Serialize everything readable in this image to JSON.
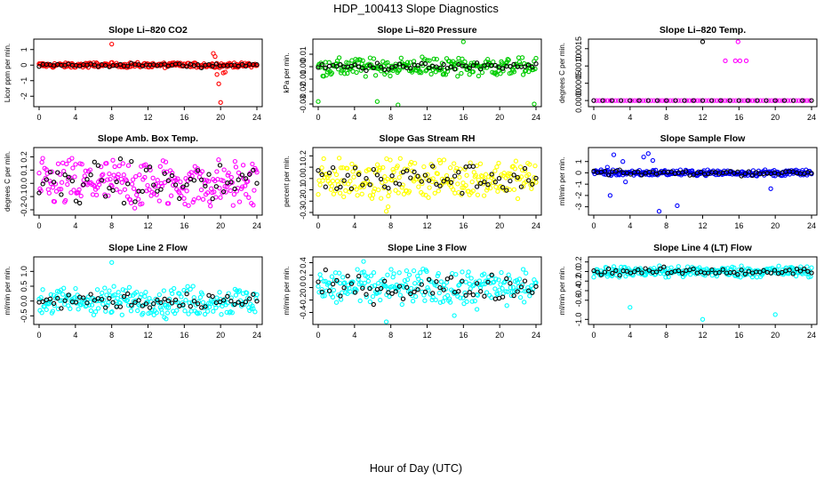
{
  "figure": {
    "title": "HDP_100413  Slope Diagnostics",
    "xlabel": "Hour of Day (UTC)"
  },
  "chart_data": [
    {
      "type": "scatter",
      "title": "Slope Li–820 CO2",
      "ylabel": "Licor ppm per min.",
      "color": "#ff0000",
      "xlim": [
        0,
        24
      ],
      "ylim": [
        -2.5,
        1.5
      ],
      "xticks": [
        0,
        4,
        8,
        12,
        16,
        20,
        24
      ],
      "yticks": [
        -2,
        -1,
        0,
        1
      ],
      "ytick_labels": [
        "-2",
        "-1",
        "0",
        "1"
      ],
      "base": 0.0,
      "noise": 0.17,
      "black_noise": 0.12,
      "outliers": [
        [
          8.0,
          1.35
        ],
        [
          19.2,
          0.75
        ],
        [
          19.4,
          0.55
        ],
        [
          19.6,
          -0.6
        ],
        [
          19.8,
          -1.2
        ],
        [
          20.0,
          -2.4
        ],
        [
          20.3,
          -0.5
        ],
        [
          20.5,
          -0.45
        ]
      ]
    },
    {
      "type": "scatter",
      "title": "Slope Li–820 Pressure",
      "ylabel": "kPa per min.",
      "color": "#00cc00",
      "xlim": [
        0,
        24
      ],
      "ylim": [
        -0.03,
        0.02
      ],
      "xticks": [
        0,
        4,
        8,
        12,
        16,
        20,
        24
      ],
      "yticks": [
        -0.03,
        -0.02,
        -0.01,
        0.0,
        0.01
      ],
      "ytick_labels": [
        "-0.03",
        "-0.02",
        "-0.01",
        "0.00",
        "0.01"
      ],
      "base": 0.0,
      "noise": 0.008,
      "black_noise": 0.003,
      "outliers": [
        [
          0.0,
          -0.028
        ],
        [
          6.5,
          -0.028
        ],
        [
          8.8,
          -0.032
        ],
        [
          16.0,
          0.02
        ],
        [
          23.8,
          -0.03
        ]
      ]
    },
    {
      "type": "scatter",
      "title": "Slope Li–820 Temp.",
      "ylabel": "degrees C per min.",
      "color": "#ff00ff",
      "xlim": [
        0,
        24
      ],
      "ylim": [
        -0.0001,
        0.0017
      ],
      "xticks": [
        0,
        4,
        8,
        12,
        16,
        20,
        24
      ],
      "yticks": [
        0.0,
        0.0005,
        0.001,
        0.0015
      ],
      "ytick_labels": [
        "0.0000",
        "0.0005",
        "0.0010",
        "0.0015"
      ],
      "base": 0.0,
      "noise": 0.0,
      "black_noise": 0.0,
      "outliers": [
        [
          12.0,
          0.0017
        ],
        [
          14.5,
          0.00115
        ],
        [
          15.6,
          0.00115
        ],
        [
          15.9,
          0.0017
        ],
        [
          16.1,
          0.00115
        ],
        [
          16.8,
          0.00115
        ]
      ]
    },
    {
      "type": "scatter",
      "title": "Slope Amb. Box Temp.",
      "ylabel": "degrees C per min.",
      "color": "#ff00ff",
      "xlim": [
        0,
        24
      ],
      "ylim": [
        -0.22,
        0.25
      ],
      "xticks": [
        0,
        4,
        8,
        12,
        16,
        20,
        24
      ],
      "yticks": [
        -0.2,
        -0.1,
        0.0,
        0.1,
        0.2
      ],
      "ytick_labels": [
        "-0.2",
        "-0.1",
        "0.0",
        "0.1",
        "0.2"
      ],
      "base": 0.0,
      "noise": 0.19,
      "black_noise": 0.15,
      "outliers": []
    },
    {
      "type": "scatter",
      "title": "Slope Gas Stream RH",
      "ylabel": "percent per min.",
      "color": "#ffff00",
      "xlim": [
        0,
        24
      ],
      "ylim": [
        -0.3,
        0.25
      ],
      "xticks": [
        0,
        4,
        8,
        12,
        16,
        20,
        24
      ],
      "yticks": [
        -0.3,
        -0.2,
        -0.1,
        0.0,
        0.1,
        0.2
      ],
      "ytick_labels": [
        "-0.3",
        "-0.2",
        "-0.1",
        "0.0",
        "0.1",
        "0.2"
      ],
      "base": 0.0,
      "noise": 0.18,
      "black_noise": 0.13,
      "outliers": [
        [
          7.5,
          -0.29
        ],
        [
          7.7,
          -0.25
        ]
      ]
    },
    {
      "type": "scatter",
      "title": "Slope Sample Flow",
      "ylabel": "ml/min per min.",
      "color": "#0000ff",
      "xlim": [
        0,
        24
      ],
      "ylim": [
        -3.5,
        2.0
      ],
      "xticks": [
        0,
        4,
        8,
        12,
        16,
        20,
        24
      ],
      "yticks": [
        -3,
        -2,
        -1,
        0,
        1
      ],
      "ytick_labels": [
        "-3",
        "-2",
        "-1",
        "0",
        "1"
      ],
      "base": 0.0,
      "noise": 0.28,
      "black_noise": 0.2,
      "outliers": [
        [
          1.5,
          0.5
        ],
        [
          1.8,
          -2.0
        ],
        [
          2.2,
          1.6
        ],
        [
          3.2,
          1.0
        ],
        [
          3.5,
          -0.8
        ],
        [
          5.5,
          1.4
        ],
        [
          6.0,
          1.7
        ],
        [
          6.5,
          1.1
        ],
        [
          7.2,
          -3.4
        ],
        [
          9.2,
          -2.9
        ],
        [
          19.5,
          -1.4
        ]
      ]
    },
    {
      "type": "scatter",
      "title": "Slope Line 2 Flow",
      "ylabel": "ml/min per min.",
      "color": "#00ffff",
      "xlim": [
        0,
        24
      ],
      "ylim": [
        -0.7,
        1.4
      ],
      "xticks": [
        0,
        4,
        8,
        12,
        16,
        20,
        24
      ],
      "yticks": [
        -0.5,
        0.0,
        0.5,
        1.0
      ],
      "ytick_labels": [
        "-0.5",
        "0.0",
        "0.5",
        "1.0"
      ],
      "base": 0.0,
      "noise": 0.5,
      "black_noise": 0.25,
      "outliers": [
        [
          8.0,
          1.3
        ],
        [
          13.8,
          -0.55
        ],
        [
          14.0,
          -0.6
        ]
      ]
    },
    {
      "type": "scatter",
      "title": "Slope Line 3 Flow",
      "ylabel": "ml/min per min.",
      "color": "#00ffff",
      "xlim": [
        0,
        24
      ],
      "ylim": [
        -0.55,
        0.45
      ],
      "xticks": [
        0,
        4,
        8,
        12,
        16,
        20,
        24
      ],
      "yticks": [
        -0.4,
        -0.2,
        0.0,
        0.2,
        0.4
      ],
      "ytick_labels": [
        "-0.4",
        "-0.2",
        "0.0",
        "0.2",
        "0.4"
      ],
      "base": 0.0,
      "noise": 0.3,
      "black_noise": 0.2,
      "outliers": [
        [
          5.0,
          0.42
        ],
        [
          7.5,
          -0.55
        ],
        [
          15.0,
          -0.45
        ],
        [
          17.5,
          -0.35
        ]
      ]
    },
    {
      "type": "scatter",
      "title": "Slope Line 4 (LT) Flow",
      "ylabel": "ml/min per min.",
      "color": "#00ffff",
      "xlim": [
        0,
        24
      ],
      "ylim": [
        -1.05,
        0.25
      ],
      "xticks": [
        0,
        4,
        8,
        12,
        16,
        20,
        24
      ],
      "yticks": [
        -1.0,
        -0.6,
        -0.4,
        -0.2,
        0.0,
        0.2
      ],
      "ytick_labels": [
        "-1.0",
        "-0.6",
        "-0.4",
        "-0.2",
        "0.0",
        "0.2"
      ],
      "base": 0.0,
      "noise": 0.12,
      "black_noise": 0.07,
      "outliers": [
        [
          4.0,
          -0.75
        ],
        [
          12.0,
          -1.0
        ],
        [
          20.0,
          -0.9
        ]
      ]
    }
  ]
}
